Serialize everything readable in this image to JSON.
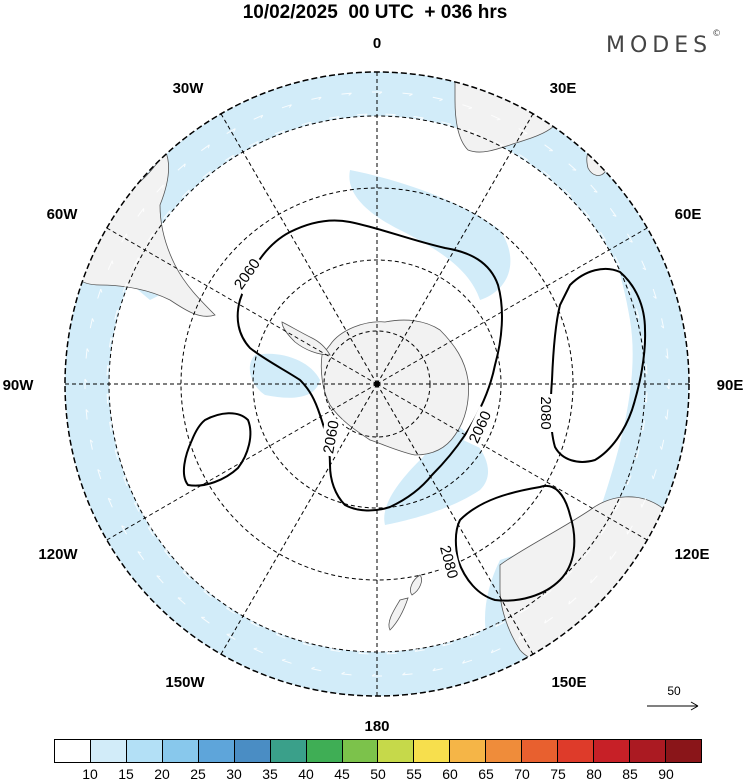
{
  "header": {
    "title": "10/02/2025  00 UTC  + 036 hrs",
    "brand": "MODES",
    "brand_mark": "©"
  },
  "map": {
    "projection": "south-polar-stereographic",
    "longitude_labels": [
      "0",
      "30E",
      "60E",
      "90E",
      "120E",
      "150E",
      "180",
      "150W",
      "120W",
      "90W",
      "60W",
      "30W"
    ],
    "contours": [
      {
        "value": 2060,
        "label": "2060"
      },
      {
        "value": 2060,
        "label": "2060"
      },
      {
        "value": 2060,
        "label": "2060"
      },
      {
        "value": 2060,
        "label": "2060"
      },
      {
        "value": 2080,
        "label": "2080"
      },
      {
        "value": 2080,
        "label": "2080"
      }
    ],
    "colors": {
      "land": "#f2f2f2",
      "shade_10_15": "#d2ecf9",
      "coast": "#555555",
      "contour": "#000000"
    }
  },
  "reference_vector": {
    "label": "50"
  },
  "colorbar": {
    "labels": [
      "10",
      "15",
      "20",
      "25",
      "30",
      "35",
      "40",
      "45",
      "50",
      "55",
      "60",
      "65",
      "70",
      "75",
      "80",
      "85",
      "90"
    ],
    "colors": [
      "#ffffff",
      "#d2ecf9",
      "#b3e0f6",
      "#88c8ec",
      "#5ea5da",
      "#4a8dc4",
      "#3aa08a",
      "#3fae55",
      "#7cc24b",
      "#c6d94a",
      "#f7df4d",
      "#f5b547",
      "#ef8c3a",
      "#e8602f",
      "#de3b2a",
      "#c72027",
      "#ab1a22",
      "#8a1519"
    ]
  }
}
